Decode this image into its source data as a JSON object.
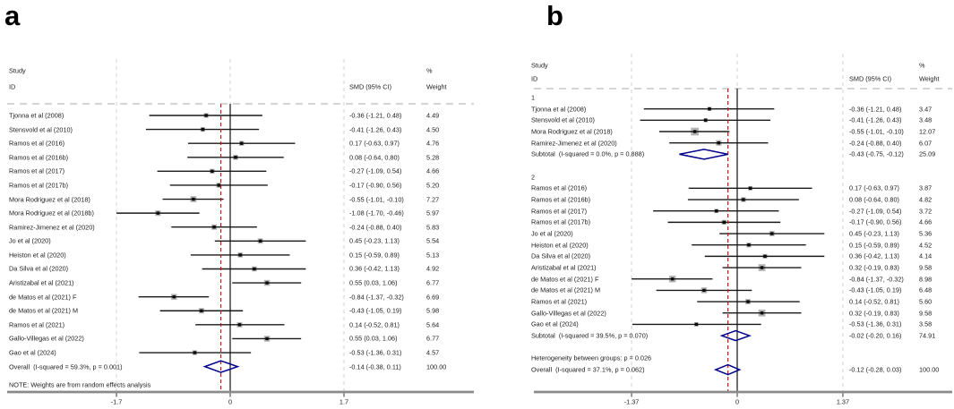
{
  "colors": {
    "diamond": "#00008b",
    "pooled_line": "#c01818",
    "null_line": "#101010",
    "ci_line": "#1a1a1a",
    "weight_box": "#b4b4b4",
    "marker": "#0a0a0a",
    "gridline": "#d3d3d3",
    "separator": "#ababab",
    "axis": "#8a8a8a",
    "tick": "#333333"
  },
  "chart_data": [
    {
      "type": "forest",
      "panel_label": "a",
      "col_headers": {
        "study_line1": "Study",
        "study_line2": "ID",
        "pct": "%",
        "smd": "SMD (95% CI)",
        "weight": "Weight"
      },
      "axis": {
        "tick_labels": [
          "-1.7",
          "0",
          "1.7"
        ],
        "tick_values": [
          -1.7,
          0,
          1.7
        ],
        "xlim": [
          -1.7,
          1.7
        ]
      },
      "null_value": 0,
      "pooled_value": -0.14,
      "note": "NOTE: Weights are from random effects analysis",
      "rows": [
        {
          "kind": "study",
          "label": "Tjonna et al (2008)",
          "est": -0.36,
          "lo": -1.21,
          "hi": 0.48,
          "ci_text": "-0.36 (-1.21, 0.48)",
          "weight": 4.49,
          "weight_text": "4.49"
        },
        {
          "kind": "study",
          "label": "Stensvold et al (2010)",
          "est": -0.41,
          "lo": -1.26,
          "hi": 0.43,
          "ci_text": "-0.41 (-1.26, 0.43)",
          "weight": 4.5,
          "weight_text": "4.50"
        },
        {
          "kind": "study",
          "label": "Ramos et al (2016)",
          "est": 0.17,
          "lo": -0.63,
          "hi": 0.97,
          "ci_text": "0.17 (-0.63, 0.97)",
          "weight": 4.76,
          "weight_text": "4.76"
        },
        {
          "kind": "study",
          "label": "Ramos et al (2016b)",
          "est": 0.08,
          "lo": -0.64,
          "hi": 0.8,
          "ci_text": "0.08 (-0.64, 0.80)",
          "weight": 5.28,
          "weight_text": "5.28"
        },
        {
          "kind": "study",
          "label": "Ramos et al (2017)",
          "est": -0.27,
          "lo": -1.09,
          "hi": 0.54,
          "ci_text": "-0.27 (-1.09, 0.54)",
          "weight": 4.66,
          "weight_text": "4.66"
        },
        {
          "kind": "study",
          "label": "Ramos et al (2017b)",
          "est": -0.17,
          "lo": -0.9,
          "hi": 0.56,
          "ci_text": "-0.17 (-0.90, 0.56)",
          "weight": 5.2,
          "weight_text": "5.20"
        },
        {
          "kind": "study",
          "label": "Mora Rodriguez et al (2018)",
          "est": -0.55,
          "lo": -1.01,
          "hi": -0.1,
          "ci_text": "-0.55 (-1.01, -0.10)",
          "weight": 7.27,
          "weight_text": "7.27"
        },
        {
          "kind": "study",
          "label": "Mora Rodriguez et al (2018b)",
          "est": -1.08,
          "lo": -1.7,
          "hi": -0.46,
          "ci_text": "-1.08 (-1.70, -0.46)",
          "weight": 5.97,
          "weight_text": "5.97"
        },
        {
          "kind": "study",
          "label": "Ramirez-Jimenez et al (2020)",
          "est": -0.24,
          "lo": -0.88,
          "hi": 0.4,
          "ci_text": "-0.24 (-0.88, 0.40)",
          "weight": 5.83,
          "weight_text": "5.83"
        },
        {
          "kind": "study",
          "label": "Jo et al (2020)",
          "est": 0.45,
          "lo": -0.23,
          "hi": 1.13,
          "ci_text": "0.45 (-0.23, 1.13)",
          "weight": 5.54,
          "weight_text": "5.54"
        },
        {
          "kind": "study",
          "label": "Heiston et al (2020)",
          "est": 0.15,
          "lo": -0.59,
          "hi": 0.89,
          "ci_text": "0.15 (-0.59, 0.89)",
          "weight": 5.13,
          "weight_text": "5.13"
        },
        {
          "kind": "study",
          "label": "Da Silva et al (2020)",
          "est": 0.36,
          "lo": -0.42,
          "hi": 1.13,
          "ci_text": "0.36 (-0.42, 1.13)",
          "weight": 4.92,
          "weight_text": "4.92"
        },
        {
          "kind": "study",
          "label": "Aristizabal et al (2021)",
          "est": 0.55,
          "lo": 0.03,
          "hi": 1.06,
          "ci_text": "0.55 (0.03, 1.06)",
          "weight": 6.77,
          "weight_text": "6.77"
        },
        {
          "kind": "study",
          "label": "de Matos et al (2021) F",
          "est": -0.84,
          "lo": -1.37,
          "hi": -0.32,
          "ci_text": "-0.84 (-1.37, -0.32)",
          "weight": 6.69,
          "weight_text": "6.69"
        },
        {
          "kind": "study",
          "label": "de Matos et al (2021) M",
          "est": -0.43,
          "lo": -1.05,
          "hi": 0.19,
          "ci_text": "-0.43 (-1.05, 0.19)",
          "weight": 5.98,
          "weight_text": "5.98"
        },
        {
          "kind": "study",
          "label": "Ramos et al (2021)",
          "est": 0.14,
          "lo": -0.52,
          "hi": 0.81,
          "ci_text": "0.14 (-0.52, 0.81)",
          "weight": 5.64,
          "weight_text": "5.64"
        },
        {
          "kind": "study",
          "label": "Gallo-Villegas et al (2022)",
          "est": 0.55,
          "lo": 0.03,
          "hi": 1.06,
          "ci_text": "0.55 (0.03, 1.06)",
          "weight": 6.77,
          "weight_text": "6.77"
        },
        {
          "kind": "study",
          "label": "Gao et al (2024)",
          "est": -0.53,
          "lo": -1.36,
          "hi": 0.31,
          "ci_text": "-0.53 (-1.36, 0.31)",
          "weight": 4.57,
          "weight_text": "4.57"
        },
        {
          "kind": "overall",
          "label": "Overall  (I-squared = 59.3%, p = 0.001)",
          "est": -0.14,
          "lo": -0.38,
          "hi": 0.11,
          "ci_text": "-0.14 (-0.38, 0.11)",
          "weight_text": "100.00"
        }
      ]
    },
    {
      "type": "forest",
      "panel_label": "b",
      "col_headers": {
        "study_line1": "Study",
        "study_line2": "ID",
        "pct": "%",
        "smd": "SMD (95% CI)",
        "weight": "Weight"
      },
      "axis": {
        "tick_labels": [
          "-1.37",
          "0",
          "1.37"
        ],
        "tick_values": [
          -1.37,
          0,
          1.37
        ],
        "xlim": [
          -1.37,
          1.37
        ]
      },
      "null_value": 0,
      "pooled_value": -0.12,
      "note": "",
      "rows": [
        {
          "kind": "group",
          "label": "1"
        },
        {
          "kind": "study",
          "label": "Tjonna et al (2008)",
          "est": -0.36,
          "lo": -1.21,
          "hi": 0.48,
          "ci_text": "-0.36 (-1.21, 0.48)",
          "weight": 3.47,
          "weight_text": "3.47"
        },
        {
          "kind": "study",
          "label": "Stensvold et al (2010)",
          "est": -0.41,
          "lo": -1.26,
          "hi": 0.43,
          "ci_text": "-0.41 (-1.26, 0.43)",
          "weight": 3.48,
          "weight_text": "3.48"
        },
        {
          "kind": "study",
          "label": "Mora Rodriguez et al (2018)",
          "est": -0.55,
          "lo": -1.01,
          "hi": -0.1,
          "ci_text": "-0.55 (-1.01, -0.10)",
          "weight": 12.07,
          "weight_text": "12.07"
        },
        {
          "kind": "study",
          "label": "Ramirez-Jimenez et al (2020)",
          "est": -0.24,
          "lo": -0.88,
          "hi": 0.4,
          "ci_text": "-0.24 (-0.88, 0.40)",
          "weight": 6.07,
          "weight_text": "6.07"
        },
        {
          "kind": "subtotal",
          "label": "Subtotal  (I-squared = 0.0%, p = 0.888)",
          "est": -0.43,
          "lo": -0.75,
          "hi": -0.12,
          "ci_text": "-0.43 (-0.75, -0.12)",
          "weight_text": "25.09"
        },
        {
          "kind": "spacer"
        },
        {
          "kind": "group",
          "label": "2"
        },
        {
          "kind": "study",
          "label": "Ramos et al (2016)",
          "est": 0.17,
          "lo": -0.63,
          "hi": 0.97,
          "ci_text": "0.17 (-0.63, 0.97)",
          "weight": 3.87,
          "weight_text": "3.87"
        },
        {
          "kind": "study",
          "label": "Ramos et al (2016b)",
          "est": 0.08,
          "lo": -0.64,
          "hi": 0.8,
          "ci_text": "0.08 (-0.64, 0.80)",
          "weight": 4.82,
          "weight_text": "4.82"
        },
        {
          "kind": "study",
          "label": "Ramos et al (2017)",
          "est": -0.27,
          "lo": -1.09,
          "hi": 0.54,
          "ci_text": "-0.27 (-1.09, 0.54)",
          "weight": 3.72,
          "weight_text": "3.72"
        },
        {
          "kind": "study",
          "label": "Ramos et al (2017b)",
          "est": -0.17,
          "lo": -0.9,
          "hi": 0.56,
          "ci_text": "-0.17 (-0.90, 0.56)",
          "weight": 4.66,
          "weight_text": "4.66"
        },
        {
          "kind": "study",
          "label": "Jo et al (2020)",
          "est": 0.45,
          "lo": -0.23,
          "hi": 1.13,
          "ci_text": "0.45 (-0.23, 1.13)",
          "weight": 5.36,
          "weight_text": "5.36"
        },
        {
          "kind": "study",
          "label": "Heiston et al (2020)",
          "est": 0.15,
          "lo": -0.59,
          "hi": 0.89,
          "ci_text": "0.15 (-0.59, 0.89)",
          "weight": 4.52,
          "weight_text": "4.52"
        },
        {
          "kind": "study",
          "label": "Da Silva et al (2020)",
          "est": 0.36,
          "lo": -0.42,
          "hi": 1.13,
          "ci_text": "0.36 (-0.42, 1.13)",
          "weight": 4.14,
          "weight_text": "4.14"
        },
        {
          "kind": "study",
          "label": "Aristizabal et al (2021)",
          "est": 0.32,
          "lo": -0.19,
          "hi": 0.83,
          "ci_text": "0.32 (-0.19, 0.83)",
          "weight": 9.58,
          "weight_text": "9.58"
        },
        {
          "kind": "study",
          "label": "de Matos et al (2021) F",
          "est": -0.84,
          "lo": -1.37,
          "hi": -0.32,
          "ci_text": "-0.84 (-1.37, -0.32)",
          "weight": 8.98,
          "weight_text": "8.98"
        },
        {
          "kind": "study",
          "label": "de Matos et al (2021) M",
          "est": -0.43,
          "lo": -1.05,
          "hi": 0.19,
          "ci_text": "-0.43 (-1.05, 0.19)",
          "weight": 6.48,
          "weight_text": "6.48"
        },
        {
          "kind": "study",
          "label": "Ramos et al (2021)",
          "est": 0.14,
          "lo": -0.52,
          "hi": 0.81,
          "ci_text": "0.14 (-0.52, 0.81)",
          "weight": 5.6,
          "weight_text": "5.60"
        },
        {
          "kind": "study",
          "label": "Gallo-Villegas et al (2022)",
          "est": 0.32,
          "lo": -0.19,
          "hi": 0.83,
          "ci_text": "0.32 (-0.19, 0.83)",
          "weight": 9.58,
          "weight_text": "9.58"
        },
        {
          "kind": "study",
          "label": "Gao et al (2024)",
          "est": -0.53,
          "lo": -1.36,
          "hi": 0.31,
          "ci_text": "-0.53 (-1.36, 0.31)",
          "weight": 3.58,
          "weight_text": "3.58"
        },
        {
          "kind": "subtotal",
          "label": "Subtotal  (I-squared = 39.5%, p = 0.070)",
          "est": -0.02,
          "lo": -0.2,
          "hi": 0.16,
          "ci_text": "-0.02 (-0.20, 0.16)",
          "weight_text": "74.91"
        },
        {
          "kind": "spacer"
        },
        {
          "kind": "text",
          "label": "Heterogeneity between groups: p = 0.026"
        },
        {
          "kind": "overall",
          "label": "Overall  (I-squared = 37.1%, p = 0.062)",
          "est": -0.12,
          "lo": -0.28,
          "hi": 0.03,
          "ci_text": "-0.12 (-0.28, 0.03)",
          "weight_text": "100.00"
        }
      ]
    }
  ]
}
